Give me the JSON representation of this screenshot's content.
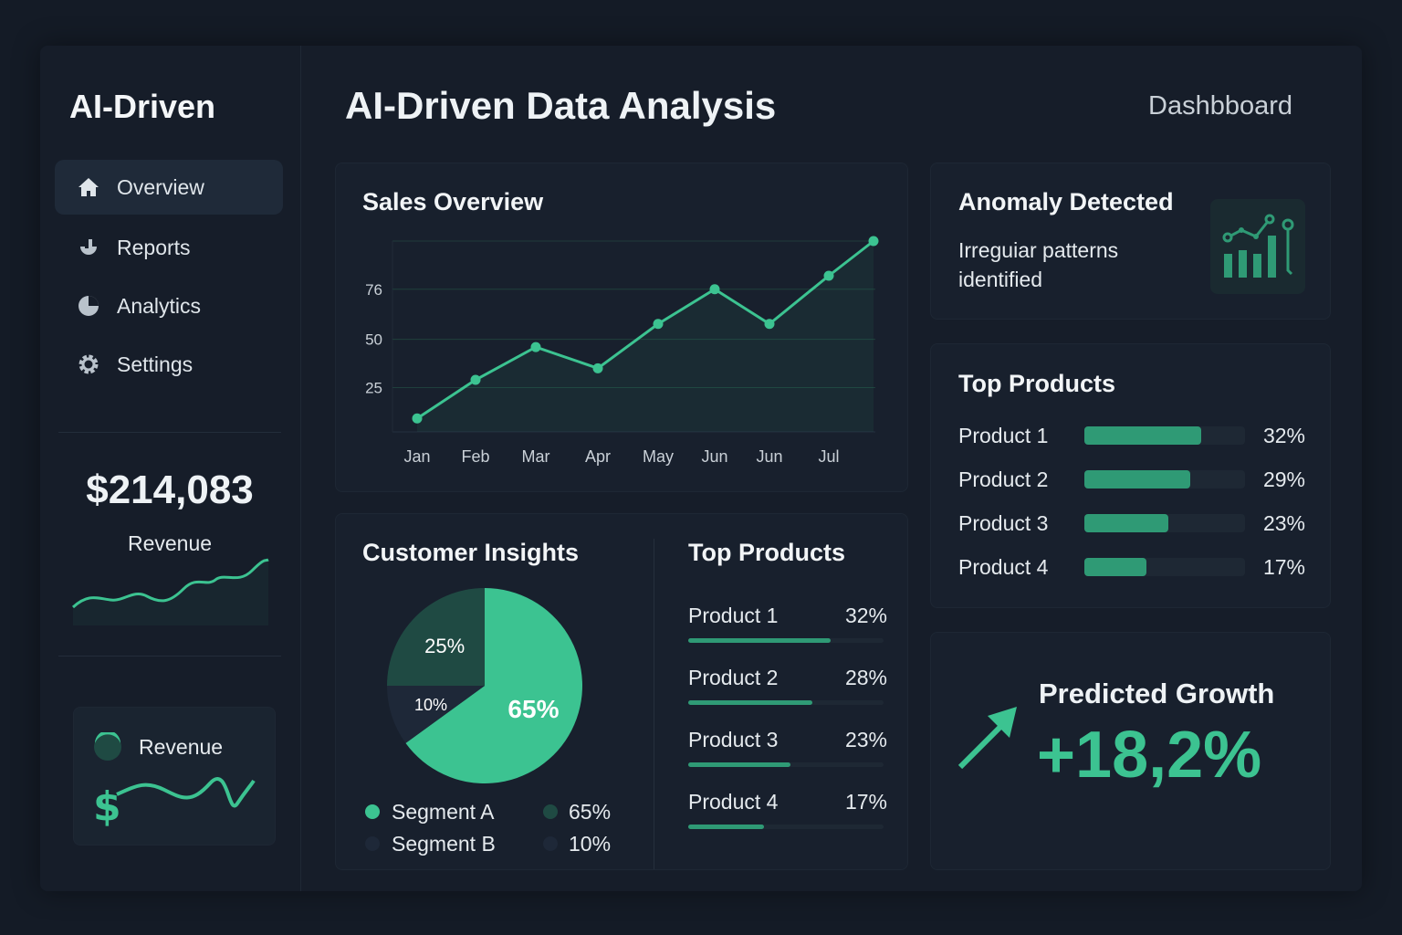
{
  "brand": "AI-Driven",
  "header": {
    "title": "AI-Driven Data Analysis",
    "right_label": "Dashbboard"
  },
  "sidebar": {
    "items": [
      {
        "label": "Overview",
        "icon": "home-icon",
        "active": true
      },
      {
        "label": "Reports",
        "icon": "reports-icon"
      },
      {
        "label": "Analytics",
        "icon": "pie-icon"
      },
      {
        "label": "Settings",
        "icon": "gear-icon"
      }
    ],
    "revenue_value": "$214,083",
    "revenue_label": "Revenue",
    "revenue_card_label": "Revenue"
  },
  "colors": {
    "accent": "#3cc391",
    "dark_teal": "#1f4a43",
    "navy": "#1e2838"
  },
  "sales": {
    "title": "Sales Overview"
  },
  "anomaly": {
    "title": "Anomaly Detected",
    "line1": "Irreguiar patterns",
    "line2": "identified"
  },
  "top_products_right": {
    "title": "Top Products",
    "items": [
      {
        "name": "Product 1",
        "pct": "32%",
        "value": 32
      },
      {
        "name": "Product 2",
        "pct": "29%",
        "value": 29
      },
      {
        "name": "Product 3",
        "pct": "23%",
        "value": 23
      },
      {
        "name": "Product 4",
        "pct": "17%",
        "value": 17
      }
    ]
  },
  "customer": {
    "title": "Customer Insights",
    "legend": [
      {
        "name": "Segment A",
        "value": "65%"
      },
      {
        "name": "Segment B",
        "value": "10%"
      }
    ]
  },
  "top_products_mid": {
    "title": "Top Products",
    "items": [
      {
        "name": "Product 1",
        "pct": "32%",
        "value": 32
      },
      {
        "name": "Product 2",
        "pct": "28%",
        "value": 28
      },
      {
        "name": "Product 3",
        "pct": "23%",
        "value": 23
      },
      {
        "name": "Product 4",
        "pct": "17%",
        "value": 17
      }
    ]
  },
  "growth": {
    "title": "Predicted Growth",
    "value": "+18,2%"
  },
  "chart_data": [
    {
      "type": "line",
      "title": "Sales Overview",
      "categories": [
        "Jan",
        "Feb",
        "Mar",
        "Apr",
        "May",
        "Jun",
        "Jun",
        "Jul",
        ""
      ],
      "values": [
        9,
        29,
        46,
        35,
        58,
        76,
        58,
        83,
        101
      ],
      "yticks": [
        "25",
        "50",
        "76"
      ],
      "ylim": [
        2,
        101
      ],
      "grid": true
    },
    {
      "type": "pie",
      "labels": [
        "65%",
        "10%",
        "25%"
      ],
      "values": [
        65,
        10,
        25
      ]
    }
  ]
}
